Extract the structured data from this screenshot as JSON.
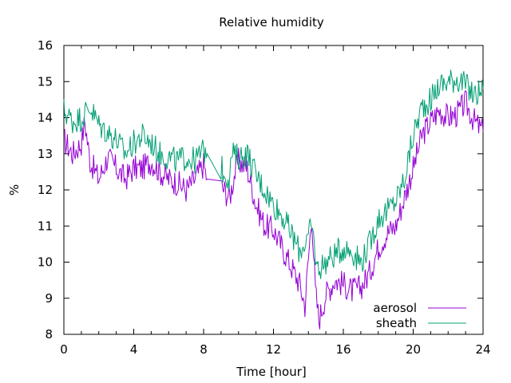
{
  "chart_data": {
    "type": "line",
    "title": "Relative humidity",
    "xlabel": "Time [hour]",
    "ylabel": "%",
    "xlim": [
      0,
      24
    ],
    "ylim": [
      8,
      16
    ],
    "x_ticks": [
      "0",
      "4",
      "8",
      "12",
      "16",
      "20",
      "24"
    ],
    "y_ticks": [
      "8",
      "9",
      "10",
      "11",
      "12",
      "13",
      "14",
      "15",
      "16"
    ],
    "grid": false,
    "legend_position": "bottom-right",
    "series": [
      {
        "name": "aerosol",
        "color": "#9400d3",
        "points": [
          [
            0.0,
            13.4
          ],
          [
            0.5,
            13.0
          ],
          [
            1.0,
            13.3
          ],
          [
            1.2,
            13.9
          ],
          [
            1.5,
            12.8
          ],
          [
            2.0,
            12.3
          ],
          [
            2.5,
            12.9
          ],
          [
            3.0,
            12.6
          ],
          [
            3.5,
            12.3
          ],
          [
            4.0,
            12.6
          ],
          [
            4.5,
            12.6
          ],
          [
            5.0,
            12.8
          ],
          [
            5.5,
            12.5
          ],
          [
            6.0,
            12.3
          ],
          [
            6.5,
            12.2
          ],
          [
            7.0,
            12.0
          ],
          [
            7.5,
            12.3
          ],
          [
            8.0,
            12.7
          ],
          [
            8.2,
            12.3
          ],
          [
            9.0,
            12.1
          ],
          [
            9.5,
            11.8
          ],
          [
            9.8,
            12.5
          ],
          [
            10.0,
            12.8
          ],
          [
            10.5,
            12.6
          ],
          [
            11.0,
            11.6
          ],
          [
            11.5,
            11.0
          ],
          [
            12.0,
            10.9
          ],
          [
            12.5,
            10.4
          ],
          [
            13.0,
            9.9
          ],
          [
            13.5,
            9.4
          ],
          [
            13.8,
            8.8
          ],
          [
            14.0,
            10.1
          ],
          [
            14.2,
            11.3
          ],
          [
            14.4,
            9.2
          ],
          [
            14.6,
            8.4
          ],
          [
            15.0,
            9.1
          ],
          [
            15.5,
            9.5
          ],
          [
            16.0,
            9.4
          ],
          [
            16.5,
            9.2
          ],
          [
            17.0,
            9.3
          ],
          [
            17.5,
            9.7
          ],
          [
            18.0,
            10.4
          ],
          [
            18.5,
            10.8
          ],
          [
            19.0,
            11.0
          ],
          [
            19.5,
            11.8
          ],
          [
            20.0,
            12.6
          ],
          [
            20.5,
            13.5
          ],
          [
            21.0,
            13.9
          ],
          [
            21.5,
            14.2
          ],
          [
            22.0,
            14.0
          ],
          [
            22.5,
            14.1
          ],
          [
            23.0,
            14.4
          ],
          [
            23.5,
            13.9
          ],
          [
            24.0,
            13.6
          ]
        ]
      },
      {
        "name": "sheath",
        "color": "#009e73",
        "points": [
          [
            0.0,
            14.2
          ],
          [
            0.5,
            13.9
          ],
          [
            1.0,
            14.0
          ],
          [
            1.5,
            14.3
          ],
          [
            2.0,
            13.8
          ],
          [
            2.5,
            13.6
          ],
          [
            3.0,
            13.4
          ],
          [
            3.5,
            13.0
          ],
          [
            4.0,
            13.3
          ],
          [
            4.5,
            13.5
          ],
          [
            5.0,
            13.3
          ],
          [
            5.5,
            13.0
          ],
          [
            6.0,
            12.9
          ],
          [
            6.5,
            12.8
          ],
          [
            7.0,
            12.9
          ],
          [
            7.5,
            12.8
          ],
          [
            8.0,
            13.1
          ],
          [
            8.2,
            13.0
          ],
          [
            9.0,
            12.6
          ],
          [
            9.5,
            12.3
          ],
          [
            9.6,
            13.0
          ],
          [
            10.0,
            12.9
          ],
          [
            10.5,
            13.0
          ],
          [
            11.0,
            12.4
          ],
          [
            11.5,
            12.0
          ],
          [
            12.0,
            11.6
          ],
          [
            12.5,
            11.3
          ],
          [
            13.0,
            10.8
          ],
          [
            13.5,
            10.3
          ],
          [
            14.0,
            10.7
          ],
          [
            14.2,
            11.0
          ],
          [
            14.5,
            9.8
          ],
          [
            15.0,
            10.0
          ],
          [
            15.5,
            10.2
          ],
          [
            16.0,
            10.4
          ],
          [
            16.5,
            10.3
          ],
          [
            17.0,
            10.0
          ],
          [
            17.5,
            10.5
          ],
          [
            18.0,
            11.2
          ],
          [
            18.5,
            11.4
          ],
          [
            19.0,
            11.7
          ],
          [
            19.5,
            12.3
          ],
          [
            20.0,
            13.5
          ],
          [
            20.5,
            14.3
          ],
          [
            21.0,
            14.5
          ],
          [
            21.5,
            14.9
          ],
          [
            22.0,
            15.0
          ],
          [
            22.5,
            15.1
          ],
          [
            23.0,
            14.9
          ],
          [
            23.5,
            14.6
          ],
          [
            24.0,
            14.8
          ]
        ]
      }
    ]
  }
}
